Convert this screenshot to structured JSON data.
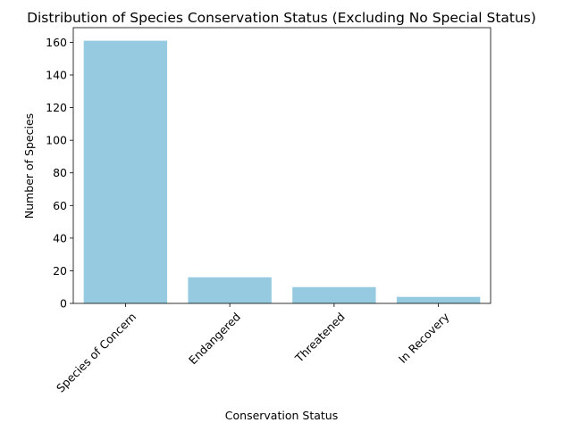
{
  "chart_data": {
    "type": "bar",
    "title": "Distribution of Species Conservation Status (Excluding No Special Status)",
    "xlabel": "Conservation Status",
    "ylabel": "Number of Species",
    "categories": [
      "Species of Concern",
      "Endangered",
      "Threatened",
      "In Recovery"
    ],
    "values": [
      161,
      16,
      10,
      4
    ],
    "ylim": [
      0,
      169
    ],
    "yticks": [
      0,
      20,
      40,
      60,
      80,
      100,
      120,
      140,
      160
    ],
    "xtick_rotation": 45,
    "grid": false,
    "legend": "none",
    "bar_color": "#95CAE0"
  }
}
